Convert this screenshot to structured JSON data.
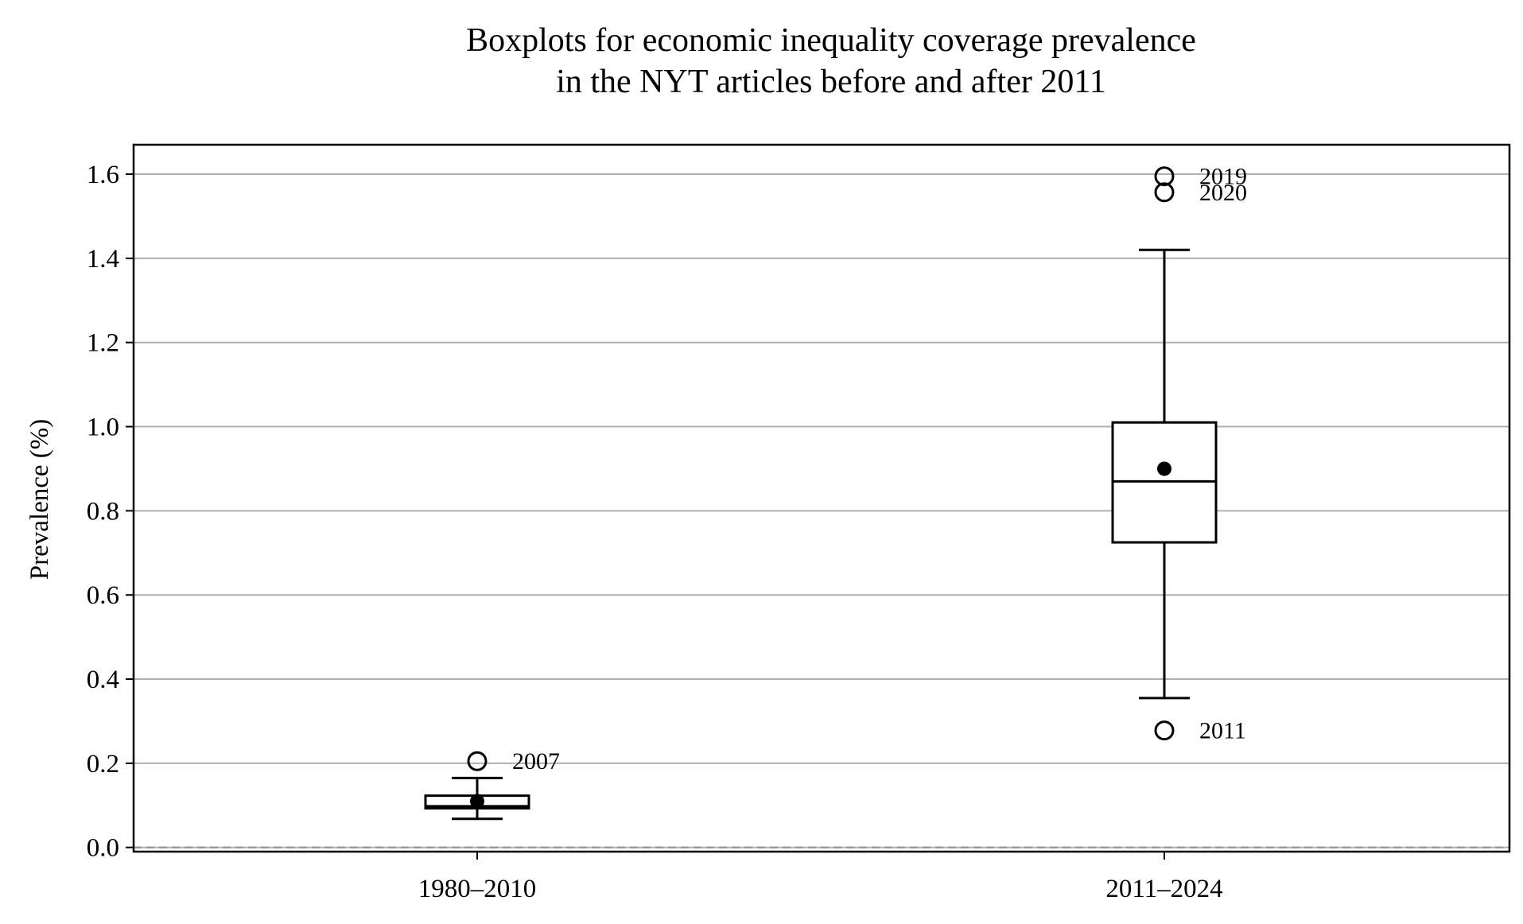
{
  "chart_data": {
    "type": "boxplot",
    "title": [
      "Boxplots for economic inequality coverage prevalence",
      "in the NYT articles before and after 2011"
    ],
    "ylabel": "Prevalence (%)",
    "xlabel": "",
    "ylim": [
      -0.01,
      1.67
    ],
    "yticks": [
      0.0,
      0.2,
      0.4,
      0.6,
      0.8,
      1.0,
      1.2,
      1.4,
      1.6
    ],
    "ytick_labels": [
      "0.0",
      "0.2",
      "0.4",
      "0.6",
      "0.8",
      "1.0",
      "1.2",
      "1.4",
      "1.6"
    ],
    "grid": "horizontal",
    "reference_line": {
      "y": 0.0,
      "style": "dashed",
      "color": "#999999"
    },
    "categories": [
      "1980–2010",
      "2011–2024"
    ],
    "boxes": [
      {
        "category": "1980–2010",
        "whisker_low": 0.068,
        "q1": 0.093,
        "median": 0.098,
        "q3": 0.123,
        "whisker_high": 0.165,
        "mean": 0.11,
        "outliers": [
          {
            "value": 0.205,
            "label": "2007"
          }
        ]
      },
      {
        "category": "2011–2024",
        "whisker_low": 0.355,
        "q1": 0.725,
        "median": 0.87,
        "q3": 1.01,
        "whisker_high": 1.42,
        "mean": 0.9,
        "outliers": [
          {
            "value": 1.595,
            "label": "2019"
          },
          {
            "value": 1.557,
            "label": "2020"
          },
          {
            "value": 0.278,
            "label": "2011"
          }
        ]
      }
    ]
  }
}
